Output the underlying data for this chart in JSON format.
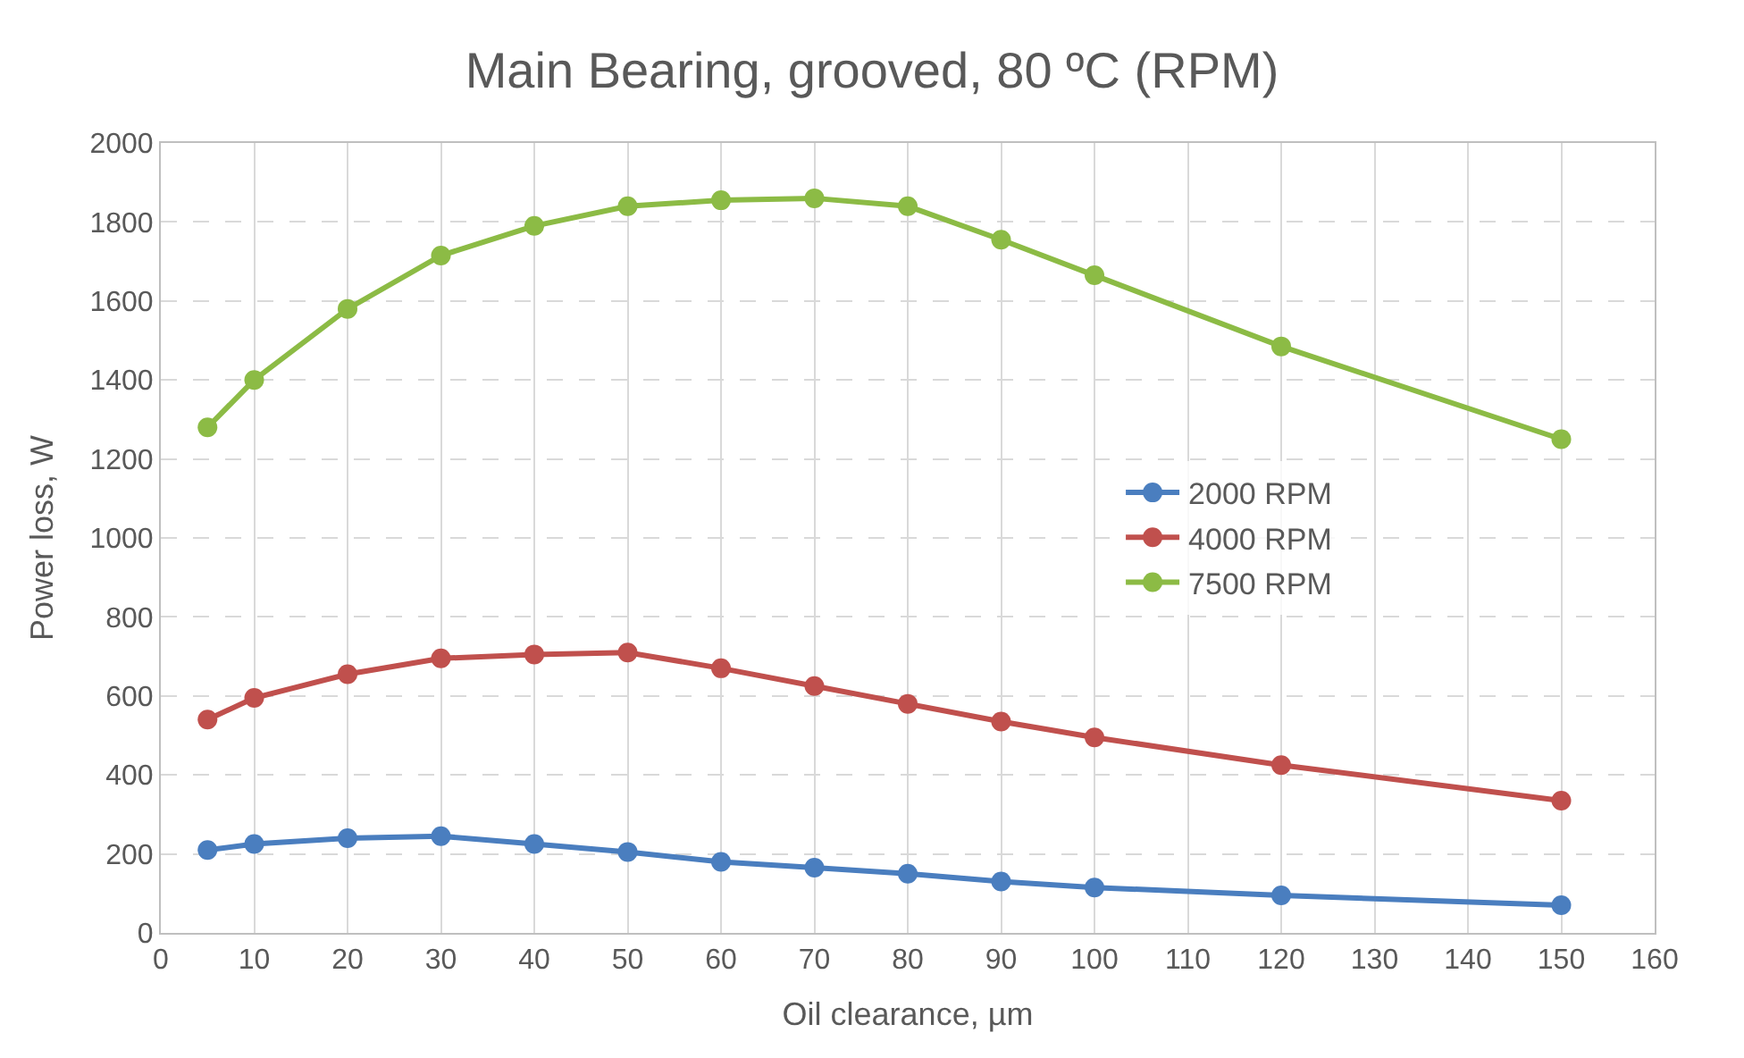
{
  "chart_data": {
    "type": "line",
    "title": "Main Bearing, grooved, 80 ºC (RPM)",
    "xlabel": "Oil clearance, µm",
    "ylabel": "Power loss, W",
    "x": [
      5,
      10,
      20,
      30,
      40,
      50,
      60,
      70,
      80,
      90,
      100,
      120,
      150
    ],
    "series": [
      {
        "name": "2000 RPM",
        "color": "#4a7ebf",
        "values": [
          210,
          225,
          240,
          245,
          225,
          205,
          180,
          165,
          150,
          130,
          115,
          95,
          70
        ]
      },
      {
        "name": "4000 RPM",
        "color": "#c0504d",
        "values": [
          540,
          595,
          655,
          695,
          705,
          710,
          670,
          625,
          580,
          535,
          495,
          425,
          335
        ]
      },
      {
        "name": "7500 RPM",
        "color": "#8cbb45",
        "values": [
          1280,
          1400,
          1580,
          1715,
          1790,
          1840,
          1855,
          1860,
          1840,
          1755,
          1665,
          1485,
          1250
        ]
      }
    ],
    "xlim": [
      0,
      160
    ],
    "xticks": [
      0,
      10,
      20,
      30,
      40,
      50,
      60,
      70,
      80,
      90,
      100,
      110,
      120,
      130,
      140,
      150,
      160
    ],
    "ylim": [
      0,
      2000
    ],
    "yticks": [
      0,
      200,
      400,
      600,
      800,
      1000,
      1200,
      1400,
      1600,
      1800,
      2000
    ],
    "grid": true,
    "legend": "right",
    "marker": "circle",
    "line_style": "solid"
  }
}
